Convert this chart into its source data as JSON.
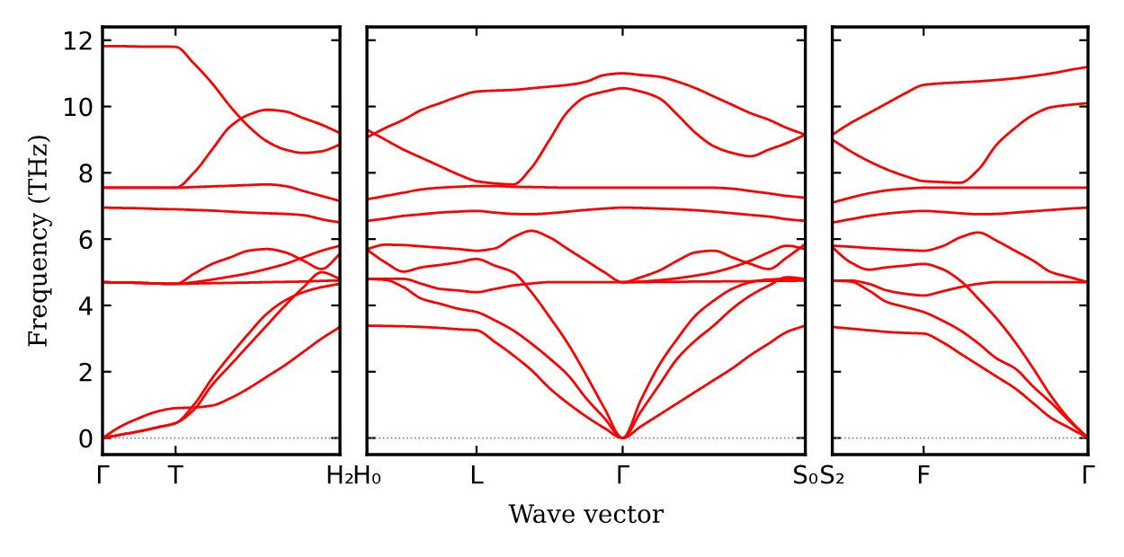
{
  "chart_data": [
    {
      "type": "line",
      "ylabel": "Frequency (THz)",
      "ylim": [
        -0.5,
        12.4
      ],
      "yticks": [
        0,
        2,
        4,
        6,
        8,
        10,
        12
      ],
      "tick_labels": "xy",
      "categories": [
        "Γ",
        null,
        null,
        null,
        "T",
        null,
        null,
        null,
        null,
        null,
        null,
        null,
        null,
        "H₂"
      ],
      "ref_lines": [
        {
          "axis": "y",
          "value": 0,
          "label": null,
          "color": "#7f7fbf",
          "line_style": "dotted"
        }
      ],
      "series": [
        {
          "color": "#ff0000",
          "values": [
            11.82,
            11.82,
            11.81,
            11.81,
            11.8,
            11.3,
            10.7,
            10.0,
            9.4,
            8.95,
            8.7,
            8.6,
            8.65,
            8.85
          ]
        },
        {
          "color": "#ff0000",
          "values": [
            7.55,
            7.55,
            7.55,
            7.55,
            7.55,
            8.0,
            8.7,
            9.4,
            9.75,
            9.9,
            9.85,
            9.65,
            9.45,
            9.2
          ]
        },
        {
          "color": "#ff0000",
          "values": [
            7.55,
            7.55,
            7.55,
            7.55,
            7.55,
            7.57,
            7.59,
            7.61,
            7.63,
            7.65,
            7.6,
            7.45,
            7.3,
            7.15
          ]
        },
        {
          "color": "#ff0000",
          "values": [
            6.95,
            6.94,
            6.93,
            6.91,
            6.9,
            6.88,
            6.86,
            6.83,
            6.8,
            6.78,
            6.76,
            6.72,
            6.6,
            6.5
          ]
        },
        {
          "color": "#ff0000",
          "values": [
            4.7,
            4.69,
            4.68,
            4.66,
            4.65,
            4.95,
            5.25,
            5.45,
            5.65,
            5.7,
            5.6,
            5.35,
            5.1,
            5.55
          ]
        },
        {
          "color": "#ff0000",
          "values": [
            4.7,
            4.69,
            4.68,
            4.66,
            4.65,
            4.7,
            4.78,
            4.87,
            4.97,
            5.1,
            5.25,
            5.45,
            5.65,
            5.8
          ]
        },
        {
          "color": "#ff0000",
          "values": [
            4.7,
            4.69,
            4.68,
            4.66,
            4.65,
            4.66,
            4.67,
            4.68,
            4.69,
            4.7,
            4.71,
            4.72,
            4.74,
            4.75
          ]
        },
        {
          "color": "#ff0000",
          "values": [
            0,
            0.35,
            0.6,
            0.8,
            0.9,
            0.92,
            0.98,
            1.2,
            1.5,
            1.85,
            2.2,
            2.6,
            3.0,
            3.35
          ]
        },
        {
          "color": "#ff0000",
          "values": [
            0,
            0.1,
            0.2,
            0.32,
            0.45,
            1.0,
            1.8,
            2.5,
            3.15,
            3.75,
            4.15,
            4.4,
            4.55,
            4.65
          ]
        },
        {
          "color": "#ff0000",
          "values": [
            0,
            0.1,
            0.2,
            0.32,
            0.45,
            0.85,
            1.6,
            2.2,
            2.8,
            3.4,
            4.0,
            4.55,
            5.0,
            4.8
          ]
        }
      ]
    },
    {
      "type": "line",
      "xlabel": "Wave vector",
      "ylim": [
        -0.5,
        12.4
      ],
      "yticks": [
        0,
        2,
        4,
        6,
        8,
        10,
        12
      ],
      "tick_labels": "x",
      "categories": [
        "H₀",
        null,
        null,
        null,
        null,
        null,
        "L",
        null,
        null,
        null,
        null,
        null,
        null,
        null,
        "Γ",
        null,
        null,
        null,
        null,
        null,
        null,
        null,
        null,
        null,
        "S₀"
      ],
      "ref_lines": [
        {
          "axis": "y",
          "value": 0,
          "label": null,
          "color": "#7f7fbf",
          "line_style": "dotted"
        }
      ],
      "series": [
        {
          "color": "#ff0000",
          "values": [
            9.07,
            9.35,
            9.6,
            9.9,
            10.1,
            10.3,
            10.45,
            10.48,
            10.5,
            10.55,
            10.6,
            10.65,
            10.75,
            10.95,
            11.0,
            10.95,
            10.9,
            10.75,
            10.55,
            10.3,
            10.05,
            9.8,
            9.6,
            9.35,
            9.15
          ]
        },
        {
          "color": "#ff0000",
          "values": [
            9.3,
            9.0,
            8.7,
            8.45,
            8.2,
            7.95,
            7.75,
            7.68,
            7.65,
            8.15,
            9.0,
            9.85,
            10.3,
            10.45,
            10.55,
            10.45,
            10.25,
            9.75,
            9.2,
            8.8,
            8.6,
            8.5,
            8.7,
            8.9,
            9.15
          ]
        },
        {
          "color": "#ff0000",
          "values": [
            7.2,
            7.3,
            7.4,
            7.5,
            7.55,
            7.58,
            7.6,
            7.6,
            7.58,
            7.57,
            7.56,
            7.55,
            7.55,
            7.55,
            7.55,
            7.55,
            7.55,
            7.55,
            7.55,
            7.55,
            7.52,
            7.45,
            7.38,
            7.3,
            7.25
          ]
        },
        {
          "color": "#ff0000",
          "values": [
            6.55,
            6.62,
            6.7,
            6.75,
            6.8,
            6.83,
            6.85,
            6.8,
            6.76,
            6.75,
            6.78,
            6.83,
            6.88,
            6.92,
            6.95,
            6.94,
            6.92,
            6.9,
            6.87,
            6.83,
            6.78,
            6.73,
            6.68,
            6.6,
            6.55
          ]
        },
        {
          "color": "#ff0000",
          "values": [
            5.7,
            5.83,
            5.82,
            5.78,
            5.74,
            5.7,
            5.65,
            5.72,
            6.05,
            6.25,
            6.05,
            5.7,
            5.35,
            5.0,
            4.7,
            4.85,
            5.05,
            5.35,
            5.6,
            5.65,
            5.45,
            5.25,
            5.1,
            5.45,
            5.85
          ]
        },
        {
          "color": "#ff0000",
          "values": [
            5.68,
            5.3,
            5.02,
            5.15,
            5.22,
            5.3,
            5.4,
            5.2,
            5.0,
            4.4,
            3.65,
            2.85,
            1.9,
            0.9,
            0,
            1.15,
            2.2,
            3.0,
            3.7,
            4.15,
            4.5,
            4.7,
            4.78,
            4.8,
            4.8
          ]
        },
        {
          "color": "#ff0000",
          "values": [
            4.8,
            4.8,
            4.8,
            4.65,
            4.5,
            4.45,
            4.4,
            4.5,
            4.6,
            4.66,
            4.7,
            4.7,
            4.7,
            4.7,
            4.7,
            4.72,
            4.76,
            4.82,
            4.9,
            5.0,
            5.15,
            5.35,
            5.6,
            5.8,
            5.7
          ]
        },
        {
          "color": "#ff0000",
          "values": [
            4.8,
            4.77,
            4.55,
            4.2,
            4.05,
            3.9,
            3.8,
            3.55,
            3.25,
            2.85,
            2.4,
            1.9,
            1.2,
            0.6,
            0,
            0.8,
            1.6,
            2.4,
            2.95,
            3.4,
            3.9,
            4.3,
            4.6,
            4.85,
            4.8
          ]
        },
        {
          "color": "#ff0000",
          "values": [
            3.39,
            3.38,
            3.37,
            3.35,
            3.32,
            3.28,
            3.25,
            2.9,
            2.5,
            2.05,
            1.5,
            1.05,
            0.65,
            0.3,
            0,
            0.35,
            0.7,
            1.05,
            1.4,
            1.75,
            2.1,
            2.5,
            2.85,
            3.2,
            3.39
          ]
        },
        {
          "color": "#ff0000",
          "values": [
            null,
            null,
            null,
            null,
            null,
            null,
            null,
            null,
            null,
            null,
            null,
            null,
            null,
            null,
            4.7,
            4.7,
            4.71,
            4.71,
            4.72,
            4.72,
            4.73,
            4.73,
            4.74,
            4.74,
            4.75
          ]
        }
      ]
    },
    {
      "type": "line",
      "ylim": [
        -0.5,
        12.4
      ],
      "yticks": [
        0,
        2,
        4,
        6,
        8,
        10,
        12
      ],
      "tick_labels": "x",
      "categories": [
        "S₂",
        null,
        null,
        null,
        null,
        "F",
        null,
        null,
        null,
        null,
        null,
        null,
        null,
        null,
        "Γ"
      ],
      "ref_lines": [
        {
          "axis": "y",
          "value": 0,
          "label": null,
          "color": "#7f7fbf",
          "line_style": "dotted"
        }
      ],
      "series": [
        {
          "color": "#ff0000",
          "values": [
            9.15,
            9.5,
            9.8,
            10.1,
            10.4,
            10.65,
            10.7,
            10.73,
            10.76,
            10.8,
            10.85,
            10.92,
            11.0,
            11.1,
            11.2
          ]
        },
        {
          "color": "#ff0000",
          "values": [
            9.0,
            8.65,
            8.35,
            8.1,
            7.9,
            7.75,
            7.72,
            7.7,
            8.1,
            8.85,
            9.35,
            9.75,
            9.98,
            10.05,
            10.1
          ]
        },
        {
          "color": "#ff0000",
          "values": [
            7.1,
            7.25,
            7.38,
            7.47,
            7.52,
            7.55,
            7.55,
            7.55,
            7.55,
            7.55,
            7.55,
            7.55,
            7.55,
            7.55,
            7.55
          ]
        },
        {
          "color": "#ff0000",
          "values": [
            6.5,
            6.6,
            6.7,
            6.77,
            6.82,
            6.85,
            6.82,
            6.78,
            6.75,
            6.76,
            6.8,
            6.84,
            6.88,
            6.92,
            6.95
          ]
        },
        {
          "color": "#ff0000",
          "values": [
            5.8,
            5.77,
            5.73,
            5.7,
            5.67,
            5.65,
            5.78,
            6.05,
            6.2,
            5.95,
            5.65,
            5.35,
            5.0,
            4.85,
            4.7
          ]
        },
        {
          "color": "#ff0000",
          "values": [
            5.75,
            5.3,
            5.08,
            5.15,
            5.2,
            5.25,
            5.1,
            4.75,
            4.2,
            3.6,
            2.9,
            2.1,
            1.25,
            0.55,
            0
          ]
        },
        {
          "color": "#ff0000",
          "values": [
            4.75,
            4.75,
            4.65,
            4.45,
            4.35,
            4.3,
            4.42,
            4.55,
            4.65,
            4.7,
            4.7,
            4.7,
            4.7,
            4.7,
            4.7
          ]
        },
        {
          "color": "#ff0000",
          "values": [
            4.75,
            4.72,
            4.45,
            4.1,
            3.95,
            3.8,
            3.55,
            3.25,
            2.85,
            2.4,
            2.1,
            1.55,
            1.05,
            0.5,
            0
          ]
        },
        {
          "color": "#ff0000",
          "values": [
            3.35,
            3.3,
            3.25,
            3.2,
            3.17,
            3.15,
            2.9,
            2.55,
            2.2,
            1.85,
            1.5,
            1.05,
            0.6,
            0.3,
            0
          ]
        }
      ]
    }
  ]
}
